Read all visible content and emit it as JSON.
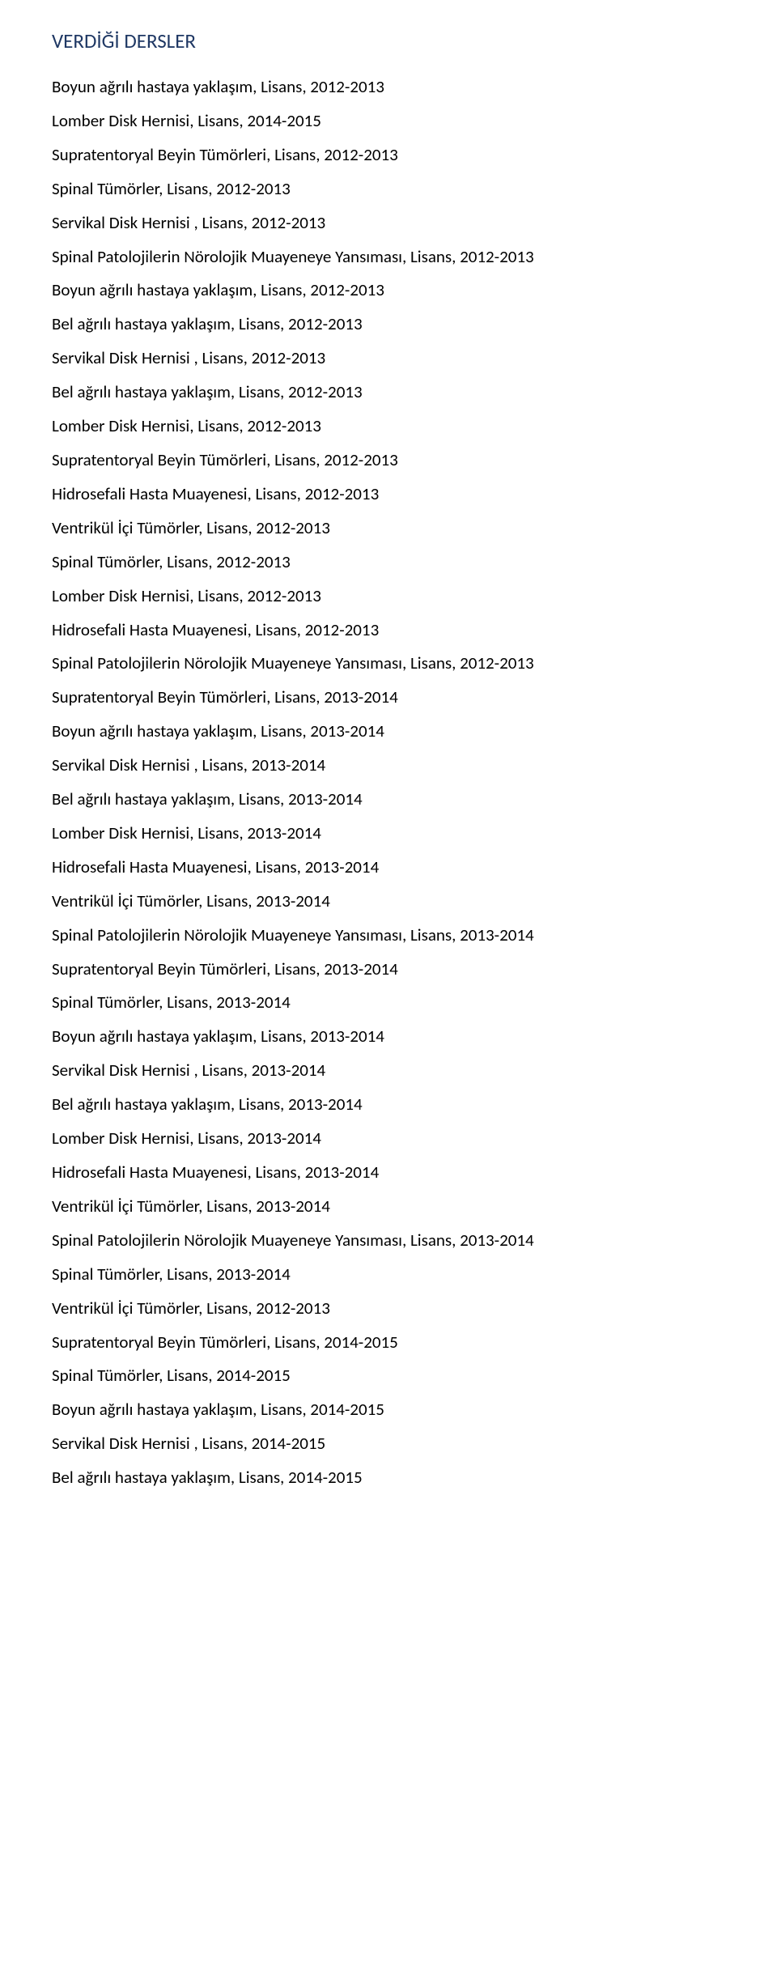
{
  "heading": "VERDİĞİ DERSLER",
  "colors": {
    "heading": "#1f3864",
    "text": "#000000",
    "background": "#ffffff"
  },
  "typography": {
    "heading_fontsize": 25,
    "body_fontsize": 21,
    "font_family": "Calibri",
    "line_height": 1.52
  },
  "courses": [
    "Boyun ağrılı hastaya yaklaşım, Lisans, 2012-2013",
    "Lomber Disk Hernisi, Lisans, 2014-2015",
    "Supratentoryal Beyin Tümörleri, Lisans, 2012-2013",
    "Spinal Tümörler, Lisans, 2012-2013",
    "Servikal Disk Hernisi , Lisans, 2012-2013",
    "Spinal  Patolojilerin Nörolojik Muayeneye Yansıması, Lisans, 2012-2013",
    "Boyun ağrılı hastaya yaklaşım, Lisans, 2012-2013",
    "Bel ağrılı hastaya yaklaşım, Lisans, 2012-2013",
    "Servikal Disk Hernisi , Lisans, 2012-2013",
    "Bel ağrılı hastaya yaklaşım, Lisans, 2012-2013",
    "Lomber Disk Hernisi, Lisans, 2012-2013",
    "Supratentoryal Beyin Tümörleri, Lisans, 2012-2013",
    "Hidrosefali Hasta Muayenesi, Lisans, 2012-2013",
    "Ventrikül İçi Tümörler, Lisans, 2012-2013",
    "Spinal Tümörler, Lisans, 2012-2013",
    "Lomber Disk Hernisi, Lisans, 2012-2013",
    "Hidrosefali Hasta Muayenesi, Lisans, 2012-2013",
    "Spinal  Patolojilerin Nörolojik Muayeneye Yansıması, Lisans, 2012-2013",
    "Supratentoryal Beyin Tümörleri, Lisans, 2013-2014",
    "Boyun ağrılı hastaya yaklaşım, Lisans, 2013-2014",
    "Servikal Disk Hernisi , Lisans, 2013-2014",
    "Bel ağrılı hastaya yaklaşım, Lisans, 2013-2014",
    "Lomber Disk Hernisi, Lisans, 2013-2014",
    "Hidrosefali Hasta Muayenesi, Lisans, 2013-2014",
    "Ventrikül İçi Tümörler, Lisans, 2013-2014",
    "Spinal  Patolojilerin Nörolojik Muayeneye Yansıması, Lisans, 2013-2014",
    "Supratentoryal Beyin Tümörleri, Lisans, 2013-2014",
    "Spinal Tümörler, Lisans, 2013-2014",
    "Boyun ağrılı hastaya yaklaşım, Lisans, 2013-2014",
    "Servikal Disk Hernisi , Lisans, 2013-2014",
    "Bel ağrılı hastaya yaklaşım, Lisans, 2013-2014",
    "Lomber Disk Hernisi, Lisans, 2013-2014",
    "Hidrosefali Hasta Muayenesi, Lisans, 2013-2014",
    "Ventrikül İçi Tümörler, Lisans, 2013-2014",
    "Spinal  Patolojilerin Nörolojik Muayeneye Yansıması, Lisans, 2013-2014",
    "Spinal Tümörler, Lisans, 2013-2014",
    "Ventrikül İçi Tümörler, Lisans, 2012-2013",
    "Supratentoryal Beyin Tümörleri, Lisans, 2014-2015",
    "Spinal Tümörler, Lisans, 2014-2015",
    "Boyun ağrılı hastaya yaklaşım, Lisans, 2014-2015",
    "Servikal Disk Hernisi , Lisans, 2014-2015",
    "Bel ağrılı hastaya yaklaşım, Lisans, 2014-2015"
  ]
}
